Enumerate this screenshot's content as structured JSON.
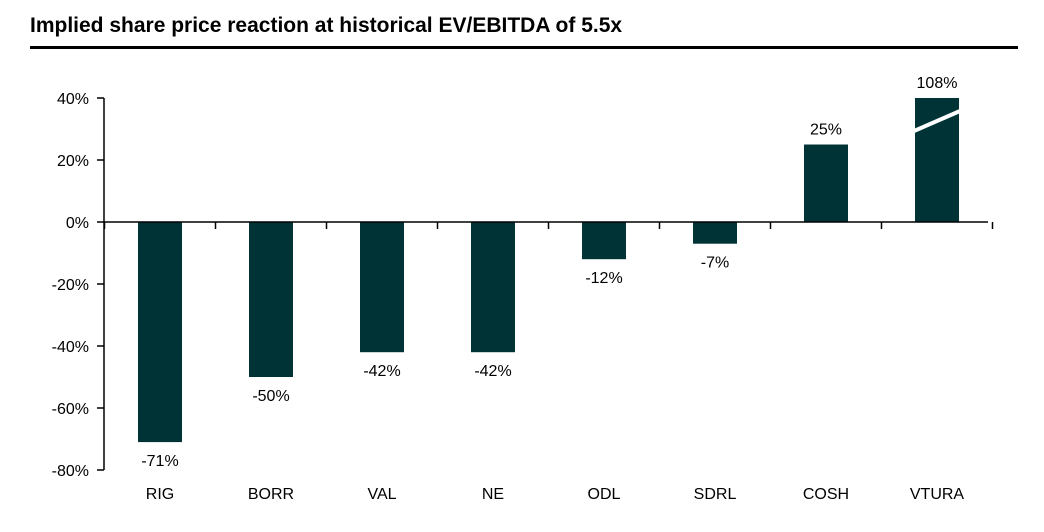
{
  "chart_data": {
    "type": "bar",
    "title": "Implied share price reaction at historical EV/EBITDA of 5.5x",
    "categories": [
      "RIG",
      "BORR",
      "VAL",
      "NE",
      "ODL",
      "SDRL",
      "COSH",
      "VTURA"
    ],
    "values": [
      -71,
      -50,
      -42,
      -42,
      -12,
      -7,
      25,
      108
    ],
    "value_labels": [
      "-71%",
      "-50%",
      "-42%",
      "-42%",
      "-12%",
      "-7%",
      "25%",
      "108%"
    ],
    "ylim": [
      -80,
      40
    ],
    "yticks": [
      40,
      20,
      0,
      -20,
      -40,
      -60,
      -80
    ],
    "ytick_labels": [
      "40%",
      "20%",
      "0%",
      "-20%",
      "-40%",
      "-60%",
      "-80%"
    ],
    "truncated_categories": [
      "VTURA"
    ],
    "grid": false,
    "bar_color": "#003336"
  }
}
